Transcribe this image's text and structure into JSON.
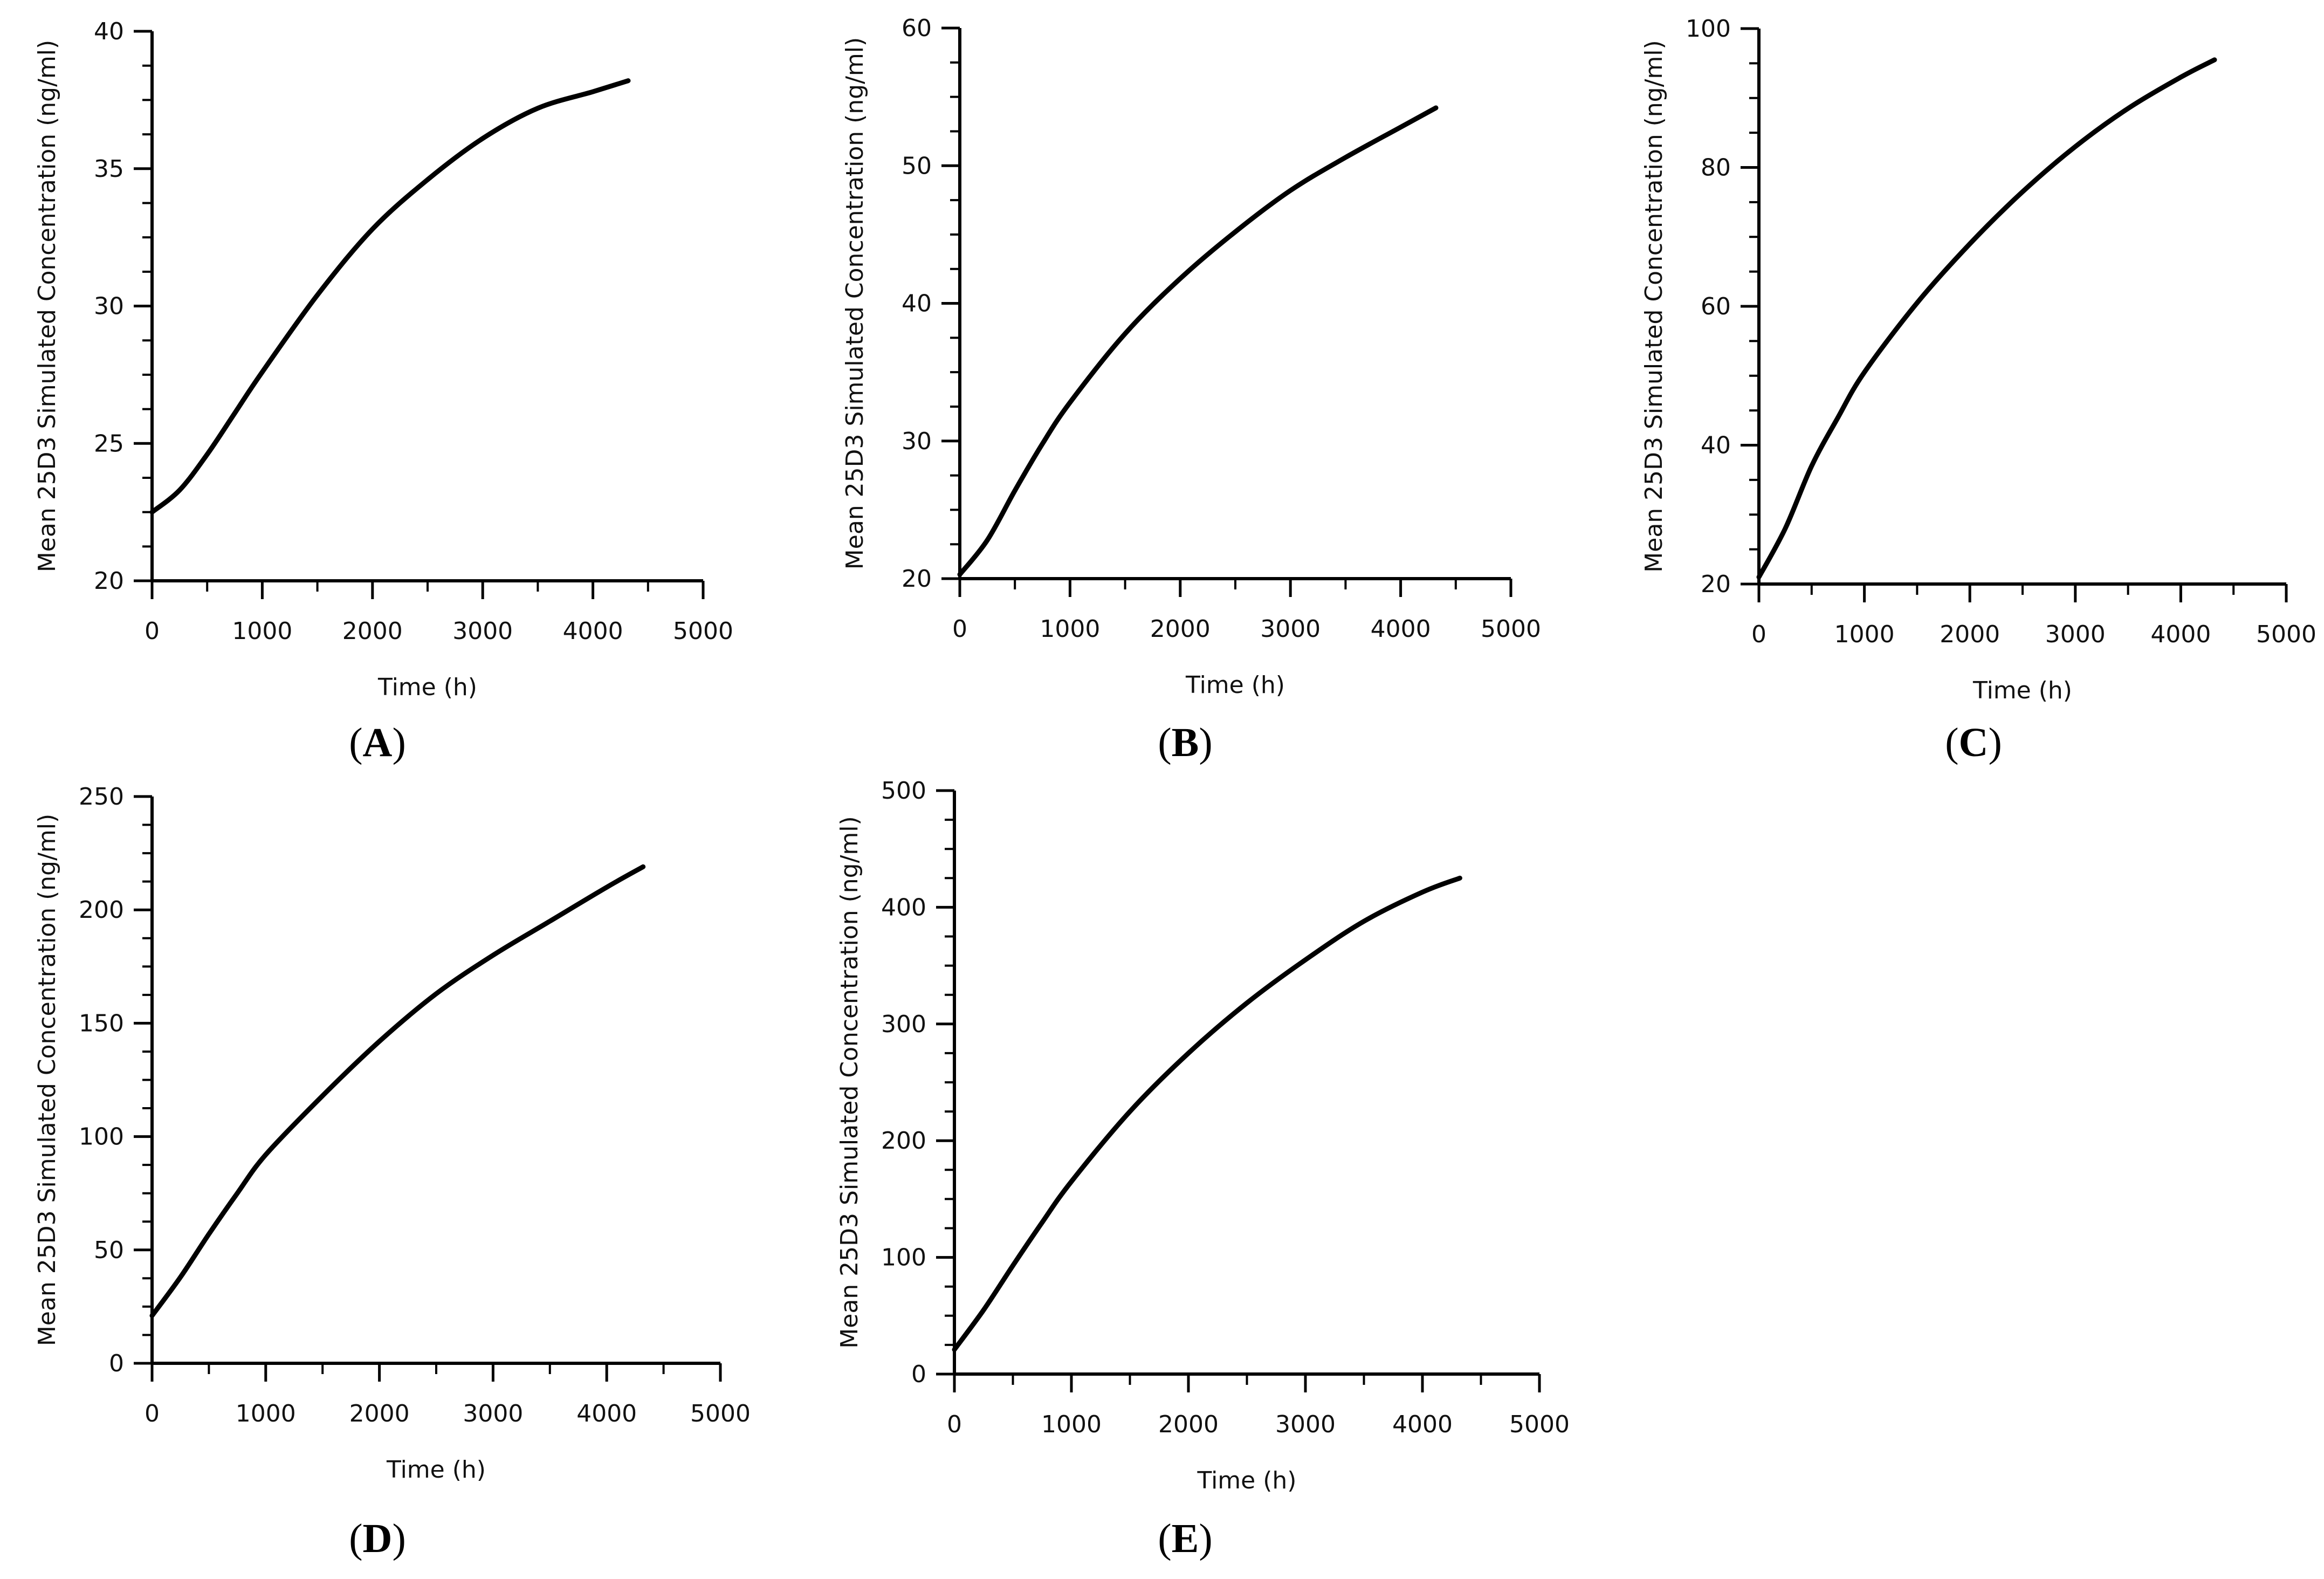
{
  "chart_data": [
    {
      "type": "line",
      "panel": "A",
      "xlabel": "Time (h)",
      "ylabel": "Mean 25D3 Simulated Concentration (ng/ml)",
      "xlim": [
        0,
        5000
      ],
      "ylim": [
        20,
        40
      ],
      "xticks": [
        0,
        1000,
        2000,
        3000,
        4000,
        5000
      ],
      "yticks": [
        20,
        25,
        30,
        35,
        40
      ],
      "grid": false,
      "series": [
        {
          "x": [
            0,
            250,
            500,
            750,
            1000,
            1500,
            2000,
            2500,
            3000,
            3500,
            4000,
            4320
          ],
          "y": [
            22.5,
            23.3,
            24.6,
            26.1,
            27.6,
            30.4,
            32.8,
            34.6,
            36.1,
            37.2,
            37.8,
            38.2
          ]
        }
      ]
    },
    {
      "type": "line",
      "panel": "B",
      "xlabel": "Time (h)",
      "ylabel": "Mean 25D3 Simulated Concentration (ng/ml)",
      "xlim": [
        0,
        5000
      ],
      "ylim": [
        20,
        60
      ],
      "xticks": [
        0,
        1000,
        2000,
        3000,
        4000,
        5000
      ],
      "yticks": [
        20,
        30,
        40,
        50,
        60
      ],
      "grid": false,
      "series": [
        {
          "x": [
            0,
            250,
            500,
            750,
            1000,
            1500,
            2000,
            2500,
            3000,
            3500,
            4000,
            4320
          ],
          "y": [
            20.3,
            22.8,
            26.4,
            29.8,
            32.8,
            37.8,
            41.8,
            45.2,
            48.2,
            50.6,
            52.8,
            54.2
          ]
        }
      ]
    },
    {
      "type": "line",
      "panel": "C",
      "xlabel": "Time (h)",
      "ylabel": "Mean 25D3 Simulated Concentration (ng/ml)",
      "xlim": [
        0,
        5000
      ],
      "ylim": [
        20,
        100
      ],
      "xticks": [
        0,
        1000,
        2000,
        3000,
        4000,
        5000
      ],
      "yticks": [
        20,
        40,
        60,
        80,
        100
      ],
      "grid": false,
      "series": [
        {
          "x": [
            0,
            250,
            500,
            750,
            1000,
            1500,
            2000,
            2500,
            3000,
            3500,
            4000,
            4320
          ],
          "y": [
            21,
            28,
            37,
            44,
            50.5,
            60.5,
            69,
            76.5,
            83,
            88.5,
            93,
            95.5
          ]
        }
      ]
    },
    {
      "type": "line",
      "panel": "D",
      "xlabel": "Time (h)",
      "ylabel": "Mean 25D3 Simulated Concentration (ng/ml)",
      "xlim": [
        0,
        5000
      ],
      "ylim": [
        0,
        250
      ],
      "xticks": [
        0,
        1000,
        2000,
        3000,
        4000,
        5000
      ],
      "yticks": [
        0,
        50,
        100,
        150,
        200,
        250
      ],
      "grid": false,
      "series": [
        {
          "x": [
            0,
            250,
            500,
            750,
            1000,
            1500,
            2000,
            2500,
            3000,
            3500,
            4000,
            4320
          ],
          "y": [
            21,
            38,
            57,
            75,
            92,
            118,
            142,
            163,
            180,
            195,
            210,
            219
          ]
        }
      ]
    },
    {
      "type": "line",
      "panel": "E",
      "xlabel": "Time (h)",
      "ylabel": "Mean 25D3 Simulated Concentration (ng/ml)",
      "xlim": [
        0,
        5000
      ],
      "ylim": [
        0,
        500
      ],
      "xticks": [
        0,
        1000,
        2000,
        3000,
        4000,
        5000
      ],
      "yticks": [
        0,
        100,
        200,
        300,
        400,
        500
      ],
      "grid": false,
      "series": [
        {
          "x": [
            0,
            250,
            500,
            750,
            1000,
            1500,
            2000,
            2500,
            3000,
            3500,
            4000,
            4320
          ],
          "y": [
            21,
            55,
            93,
            130,
            165,
            225,
            275,
            318,
            355,
            388,
            413,
            425
          ]
        }
      ]
    }
  ]
}
